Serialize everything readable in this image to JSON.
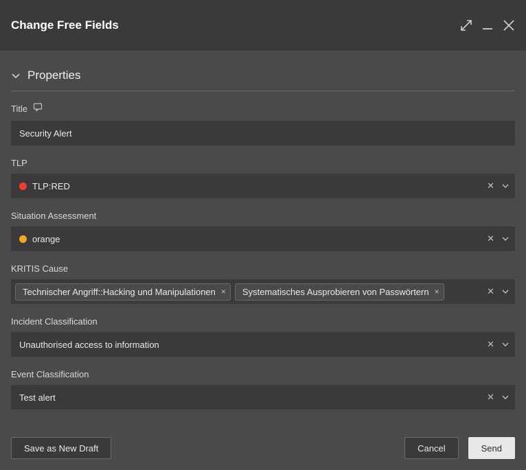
{
  "dialog": {
    "title": "Change Free Fields"
  },
  "section": {
    "title": "Properties"
  },
  "fields": {
    "title": {
      "label": "Title",
      "value": "Security Alert"
    },
    "tlp": {
      "label": "TLP",
      "value": "TLP:RED",
      "dot_color": "#f03e2f"
    },
    "situation": {
      "label": "Situation Assessment",
      "value": "orange",
      "dot_color": "#f5a623"
    },
    "kritis": {
      "label": "KRITIS Cause",
      "tags": [
        "Technischer Angriff::Hacking und Manipulationen",
        "Systematisches Ausprobieren von Passwörtern"
      ]
    },
    "incident": {
      "label": "Incident Classification",
      "value": "Unauthorised access to information"
    },
    "event": {
      "label": "Event Classification",
      "value": "Test alert"
    }
  },
  "footer": {
    "draft": "Save as New Draft",
    "cancel": "Cancel",
    "send": "Send"
  }
}
